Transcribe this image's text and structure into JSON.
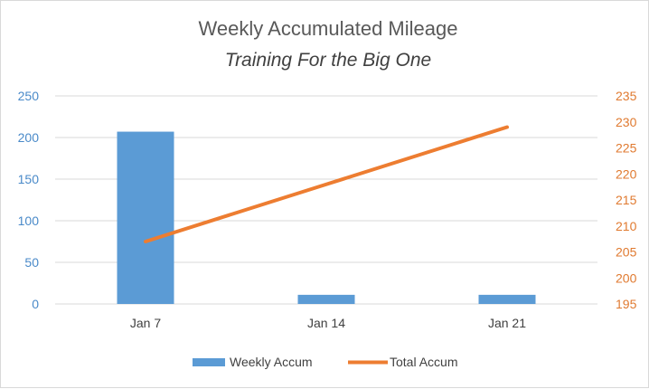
{
  "chart_data": {
    "type": "bar",
    "title": "Weekly Accumulated Mileage",
    "subtitle": "Training For the Big One",
    "categories": [
      "Jan 7",
      "Jan 14",
      "Jan 21"
    ],
    "series": [
      {
        "name": "Weekly Accum",
        "type": "bar",
        "axis": "left",
        "values": [
          207,
          11,
          11
        ]
      },
      {
        "name": "Total Accum",
        "type": "line",
        "axis": "right",
        "values": [
          207,
          218,
          229
        ]
      }
    ],
    "y_left": {
      "min": 0,
      "max": 250,
      "ticks": [
        "0",
        "50",
        "100",
        "150",
        "200",
        "250"
      ]
    },
    "y_right": {
      "min": 195,
      "max": 235,
      "ticks": [
        "195",
        "200",
        "205",
        "210",
        "215",
        "220",
        "225",
        "230",
        "235"
      ]
    },
    "grid": true,
    "legend": "bottom",
    "colors": {
      "bar": "#5b9bd5",
      "line": "#ed7d31",
      "left_axis": "#4a8ac9",
      "right_axis": "#e07a30",
      "grid": "#d9d9d9"
    }
  }
}
